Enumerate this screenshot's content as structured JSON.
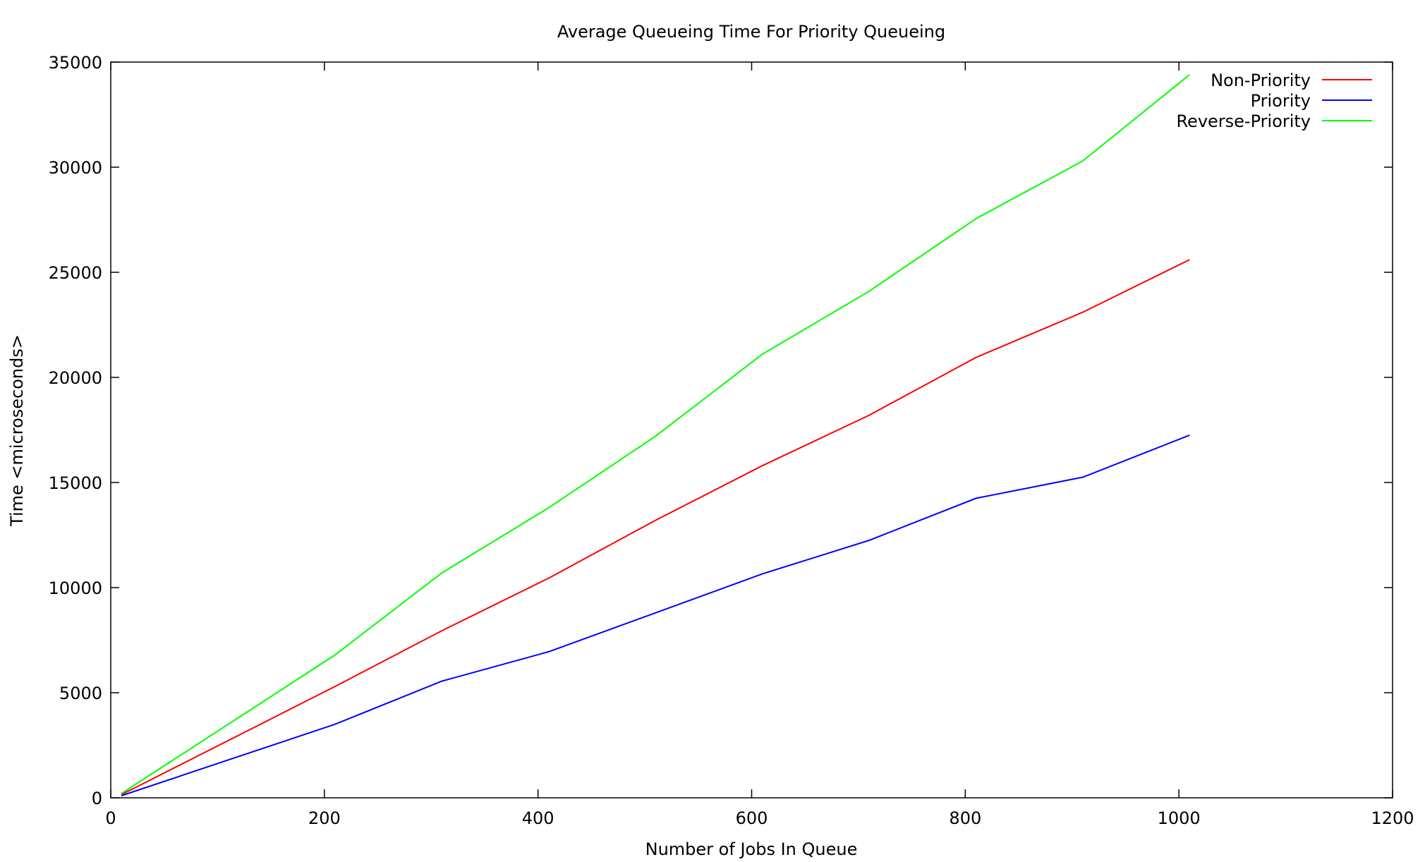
{
  "chart_data": {
    "type": "line",
    "title": "Average Queueing Time For Priority Queueing",
    "xlabel": "Number of Jobs In Queue",
    "ylabel": "Time <microseconds>",
    "xlim": [
      0,
      1200
    ],
    "ylim": [
      0,
      35000
    ],
    "x_ticks": [
      0,
      200,
      400,
      600,
      800,
      1000,
      1200
    ],
    "y_ticks": [
      0,
      5000,
      10000,
      15000,
      20000,
      25000,
      30000,
      35000
    ],
    "x_tick_labels": [
      "0",
      "200",
      "400",
      "600",
      "800",
      "1000",
      "1200"
    ],
    "y_tick_labels": [
      "0",
      "5000",
      "10000",
      "15000",
      "20000",
      "25000",
      "30000",
      "35000"
    ],
    "grid": false,
    "legend_position": "top-right",
    "x": [
      10,
      210,
      310,
      410,
      510,
      610,
      710,
      810,
      910,
      1010
    ],
    "series": [
      {
        "name": "Non-Priority",
        "color": "#ff0000",
        "values": [
          150,
          5300,
          7950,
          10450,
          13200,
          15800,
          18200,
          20950,
          23100,
          25600
        ]
      },
      {
        "name": "Priority",
        "color": "#0000ff",
        "values": [
          100,
          3500,
          5550,
          6950,
          8800,
          10650,
          12250,
          14250,
          15250,
          17250
        ]
      },
      {
        "name": "Reverse-Priority",
        "color": "#00ff00",
        "values": [
          200,
          6800,
          10700,
          13800,
          17200,
          21100,
          24100,
          27550,
          30300,
          34400
        ]
      }
    ]
  }
}
